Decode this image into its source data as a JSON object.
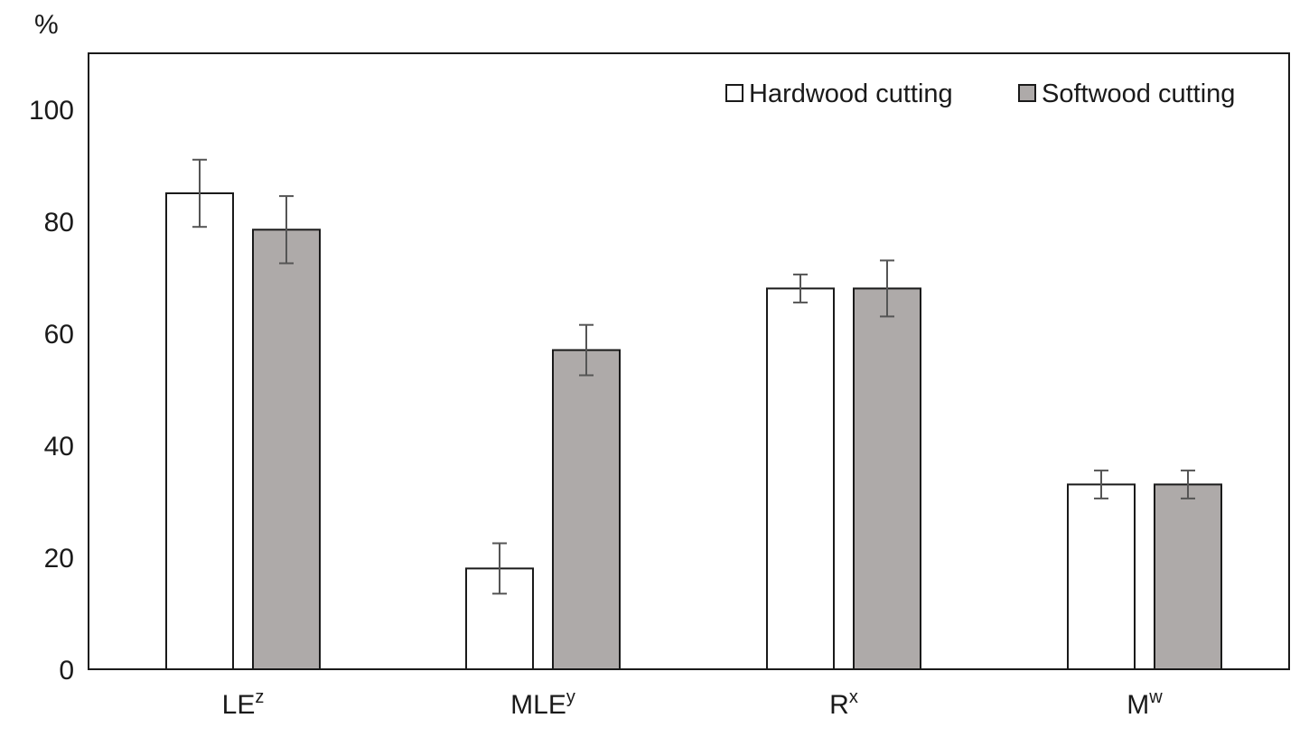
{
  "chart_data": {
    "type": "bar",
    "ylabel": "%",
    "ylim": [
      0,
      100
    ],
    "yticks": [
      "0",
      "20",
      "40",
      "60",
      "80",
      "100"
    ],
    "categories": [
      {
        "main": "LE",
        "sup": "z"
      },
      {
        "main": "MLE",
        "sup": "y"
      },
      {
        "main": "R",
        "sup": "x"
      },
      {
        "main": "M",
        "sup": "w"
      }
    ],
    "series": [
      {
        "name": "Hardwood cutting",
        "color": "#ffffff",
        "values": [
          85,
          18,
          68,
          33
        ],
        "errors": [
          6,
          4.5,
          2.5,
          2.5
        ]
      },
      {
        "name": "Softwood cutting",
        "color": "#aeaaa9",
        "values": [
          78.5,
          57,
          68,
          33
        ],
        "errors": [
          6,
          4.5,
          5,
          2.5
        ]
      }
    ],
    "legend_position": "top-right",
    "grid": false
  }
}
